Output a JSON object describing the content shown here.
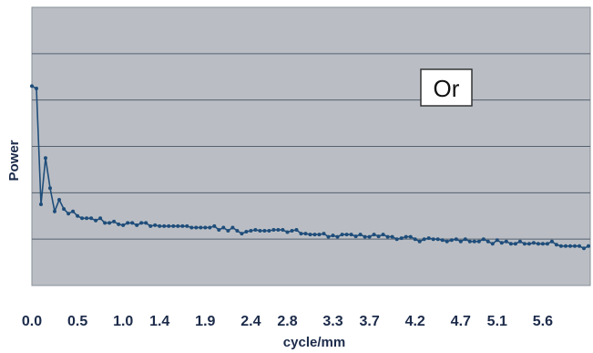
{
  "chart_data": {
    "type": "line",
    "title": "",
    "xlabel": "cycle/mm",
    "ylabel": "Power",
    "annotation": "Or",
    "grid": true,
    "colors": {
      "plot_background": "#babec4",
      "gridline": "#55606e",
      "series": "#1f4d7a",
      "tick_text": "#1c2b4a"
    },
    "xlim": [
      0,
      6.12
    ],
    "ylim": [
      0,
      6
    ],
    "x_tick_labels": [
      "0.0",
      "0.5",
      "1.0",
      "1.4",
      "1.9",
      "2.4",
      "2.8",
      "3.3",
      "3.7",
      "4.2",
      "4.7",
      "5.1",
      "5.6"
    ],
    "x_tick_values": [
      0.0,
      0.5,
      1.0,
      1.4,
      1.9,
      2.4,
      2.8,
      3.3,
      3.7,
      4.2,
      4.7,
      5.1,
      5.6
    ],
    "y_gridlines": [
      1,
      2,
      3,
      4,
      5
    ],
    "series": [
      {
        "name": "",
        "x": [
          0.0,
          0.05,
          0.1,
          0.15,
          0.2,
          0.25,
          0.3,
          0.35,
          0.4,
          0.45,
          0.5,
          0.55,
          0.6,
          0.65,
          0.7,
          0.75,
          0.8,
          0.85,
          0.9,
          0.95,
          1.0,
          1.05,
          1.1,
          1.15,
          1.2,
          1.25,
          1.3,
          1.35,
          1.4,
          1.45,
          1.5,
          1.55,
          1.6,
          1.65,
          1.7,
          1.75,
          1.8,
          1.85,
          1.9,
          1.95,
          2.0,
          2.05,
          2.1,
          2.15,
          2.2,
          2.25,
          2.3,
          2.35,
          2.4,
          2.45,
          2.5,
          2.55,
          2.6,
          2.65,
          2.7,
          2.75,
          2.8,
          2.85,
          2.9,
          2.95,
          3.0,
          3.05,
          3.1,
          3.15,
          3.2,
          3.25,
          3.3,
          3.35,
          3.4,
          3.45,
          3.5,
          3.55,
          3.6,
          3.65,
          3.7,
          3.75,
          3.8,
          3.85,
          3.9,
          3.95,
          4.0,
          4.05,
          4.1,
          4.15,
          4.2,
          4.25,
          4.3,
          4.35,
          4.4,
          4.45,
          4.5,
          4.55,
          4.6,
          4.65,
          4.7,
          4.75,
          4.8,
          4.85,
          4.9,
          4.95,
          5.0,
          5.05,
          5.1,
          5.15,
          5.2,
          5.25,
          5.3,
          5.35,
          5.4,
          5.45,
          5.5,
          5.55,
          5.6,
          5.65,
          5.7,
          5.75,
          5.8,
          5.85,
          5.9,
          5.95,
          6.0,
          6.05,
          6.1
        ],
        "values": [
          4.3,
          4.25,
          1.75,
          2.75,
          2.1,
          1.6,
          1.85,
          1.65,
          1.55,
          1.6,
          1.5,
          1.45,
          1.45,
          1.45,
          1.4,
          1.45,
          1.35,
          1.35,
          1.38,
          1.32,
          1.3,
          1.35,
          1.35,
          1.3,
          1.35,
          1.35,
          1.28,
          1.3,
          1.28,
          1.28,
          1.28,
          1.28,
          1.28,
          1.28,
          1.28,
          1.25,
          1.25,
          1.25,
          1.25,
          1.25,
          1.28,
          1.2,
          1.25,
          1.18,
          1.25,
          1.18,
          1.12,
          1.16,
          1.18,
          1.2,
          1.18,
          1.18,
          1.18,
          1.2,
          1.2,
          1.2,
          1.15,
          1.18,
          1.2,
          1.12,
          1.12,
          1.1,
          1.1,
          1.1,
          1.12,
          1.05,
          1.08,
          1.05,
          1.1,
          1.1,
          1.1,
          1.06,
          1.1,
          1.05,
          1.05,
          1.1,
          1.06,
          1.1,
          1.05,
          1.05,
          1.0,
          1.02,
          1.05,
          1.05,
          1.0,
          0.95,
          1.0,
          1.02,
          1.0,
          1.0,
          0.98,
          0.95,
          0.98,
          1.0,
          0.95,
          1.0,
          0.95,
          0.95,
          0.95,
          1.0,
          0.95,
          0.9,
          0.98,
          0.92,
          0.95,
          0.9,
          0.9,
          0.95,
          0.9,
          0.9,
          0.92,
          0.9,
          0.9,
          0.9,
          0.95,
          0.88,
          0.85,
          0.85,
          0.85,
          0.85,
          0.85,
          0.8,
          0.85
        ]
      }
    ]
  }
}
